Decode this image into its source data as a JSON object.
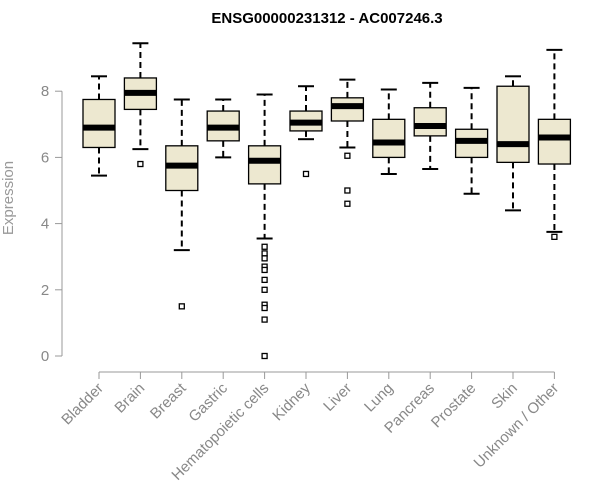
{
  "chart_data": {
    "type": "box",
    "title": "ENSG00000231312 - AC007246.3",
    "xlabel": "",
    "ylabel": "Expression",
    "ylim": [
      0,
      9.5
    ],
    "yticks": [
      0,
      2,
      4,
      6,
      8
    ],
    "grid": false,
    "colors": {
      "box_fill": "#ede8d0",
      "box_stroke": "#000000",
      "axis": "#999999"
    },
    "categories": [
      "Bladder",
      "Brain",
      "Breast",
      "Gastric",
      "Hematopoietic cells",
      "Kidney",
      "Liver",
      "Lung",
      "Pancreas",
      "Prostate",
      "Skin",
      "Unknown / Other"
    ],
    "boxes": [
      {
        "category": "Bladder",
        "whisker_low": 5.45,
        "q1": 6.3,
        "median": 6.9,
        "q3": 7.75,
        "whisker_high": 8.45,
        "outliers": []
      },
      {
        "category": "Brain",
        "whisker_low": 6.25,
        "q1": 7.45,
        "median": 7.95,
        "q3": 8.4,
        "whisker_high": 9.45,
        "outliers": [
          5.8
        ]
      },
      {
        "category": "Breast",
        "whisker_low": 3.2,
        "q1": 5.0,
        "median": 5.75,
        "q3": 6.35,
        "whisker_high": 7.75,
        "outliers": [
          1.5
        ]
      },
      {
        "category": "Gastric",
        "whisker_low": 6.0,
        "q1": 6.5,
        "median": 6.9,
        "q3": 7.4,
        "whisker_high": 7.75,
        "outliers": []
      },
      {
        "category": "Hematopoietic cells",
        "whisker_low": 3.55,
        "q1": 5.2,
        "median": 5.9,
        "q3": 6.35,
        "whisker_high": 7.9,
        "outliers": [
          3.3,
          3.1,
          2.95,
          2.7,
          2.6,
          2.3,
          2.0,
          1.55,
          1.45,
          1.1,
          0.0
        ]
      },
      {
        "category": "Kidney",
        "whisker_low": 6.55,
        "q1": 6.8,
        "median": 7.05,
        "q3": 7.4,
        "whisker_high": 8.15,
        "outliers": [
          5.5
        ]
      },
      {
        "category": "Liver",
        "whisker_low": 6.3,
        "q1": 7.1,
        "median": 7.55,
        "q3": 7.8,
        "whisker_high": 8.35,
        "outliers": [
          6.05,
          5.0,
          4.6
        ]
      },
      {
        "category": "Lung",
        "whisker_low": 5.5,
        "q1": 6.0,
        "median": 6.45,
        "q3": 7.15,
        "whisker_high": 8.05,
        "outliers": []
      },
      {
        "category": "Pancreas",
        "whisker_low": 5.65,
        "q1": 6.65,
        "median": 6.95,
        "q3": 7.5,
        "whisker_high": 8.25,
        "outliers": []
      },
      {
        "category": "Prostate",
        "whisker_low": 4.9,
        "q1": 6.0,
        "median": 6.5,
        "q3": 6.85,
        "whisker_high": 8.1,
        "outliers": []
      },
      {
        "category": "Skin",
        "whisker_low": 4.4,
        "q1": 5.85,
        "median": 6.4,
        "q3": 8.15,
        "whisker_high": 8.45,
        "outliers": []
      },
      {
        "category": "Unknown / Other",
        "whisker_low": 3.75,
        "q1": 5.8,
        "median": 6.6,
        "q3": 7.15,
        "whisker_high": 9.25,
        "outliers": [
          3.6
        ]
      }
    ]
  }
}
